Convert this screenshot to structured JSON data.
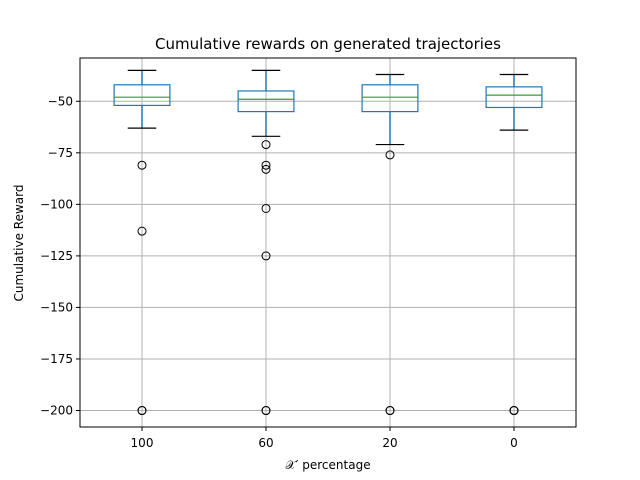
{
  "chart_data": {
    "type": "box",
    "title": "Cumulative rewards on generated trajectories",
    "xlabel": "𝒳′ percentage",
    "ylabel": "Cumulative Reward",
    "ylim": [
      -208,
      -29
    ],
    "yticks": [
      -50,
      -75,
      -100,
      -125,
      -150,
      -175,
      -200
    ],
    "ytick_labels": [
      "−50",
      "−75",
      "−100",
      "−125",
      "−150",
      "−175",
      "−200"
    ],
    "grid": true,
    "categories": [
      "100",
      "60",
      "20",
      "0"
    ],
    "boxes": [
      {
        "category": "100",
        "whisker_low": -63,
        "q1": -52,
        "median": -48,
        "q3": -42,
        "whisker_high": -35,
        "outliers": [
          -81,
          -113,
          -200,
          -200
        ]
      },
      {
        "category": "60",
        "whisker_low": -67,
        "q1": -55,
        "median": -49,
        "q3": -45,
        "whisker_high": -35,
        "outliers": [
          -71,
          -81,
          -83,
          -102,
          -125,
          -200,
          -200
        ]
      },
      {
        "category": "20",
        "whisker_low": -71,
        "q1": -55,
        "median": -48,
        "q3": -42,
        "whisker_high": -37,
        "outliers": [
          -76,
          -200,
          -200
        ]
      },
      {
        "category": "0",
        "whisker_low": -64,
        "q1": -53,
        "median": -47,
        "q3": -43,
        "whisker_high": -37,
        "outliers": [
          -200,
          -200,
          -200
        ]
      }
    ],
    "colors": {
      "box": "#1f77b4",
      "median": "#2ca02c",
      "whisker_cap": "#000000",
      "grid": "#b0b0b0",
      "flier": "#000000"
    }
  }
}
